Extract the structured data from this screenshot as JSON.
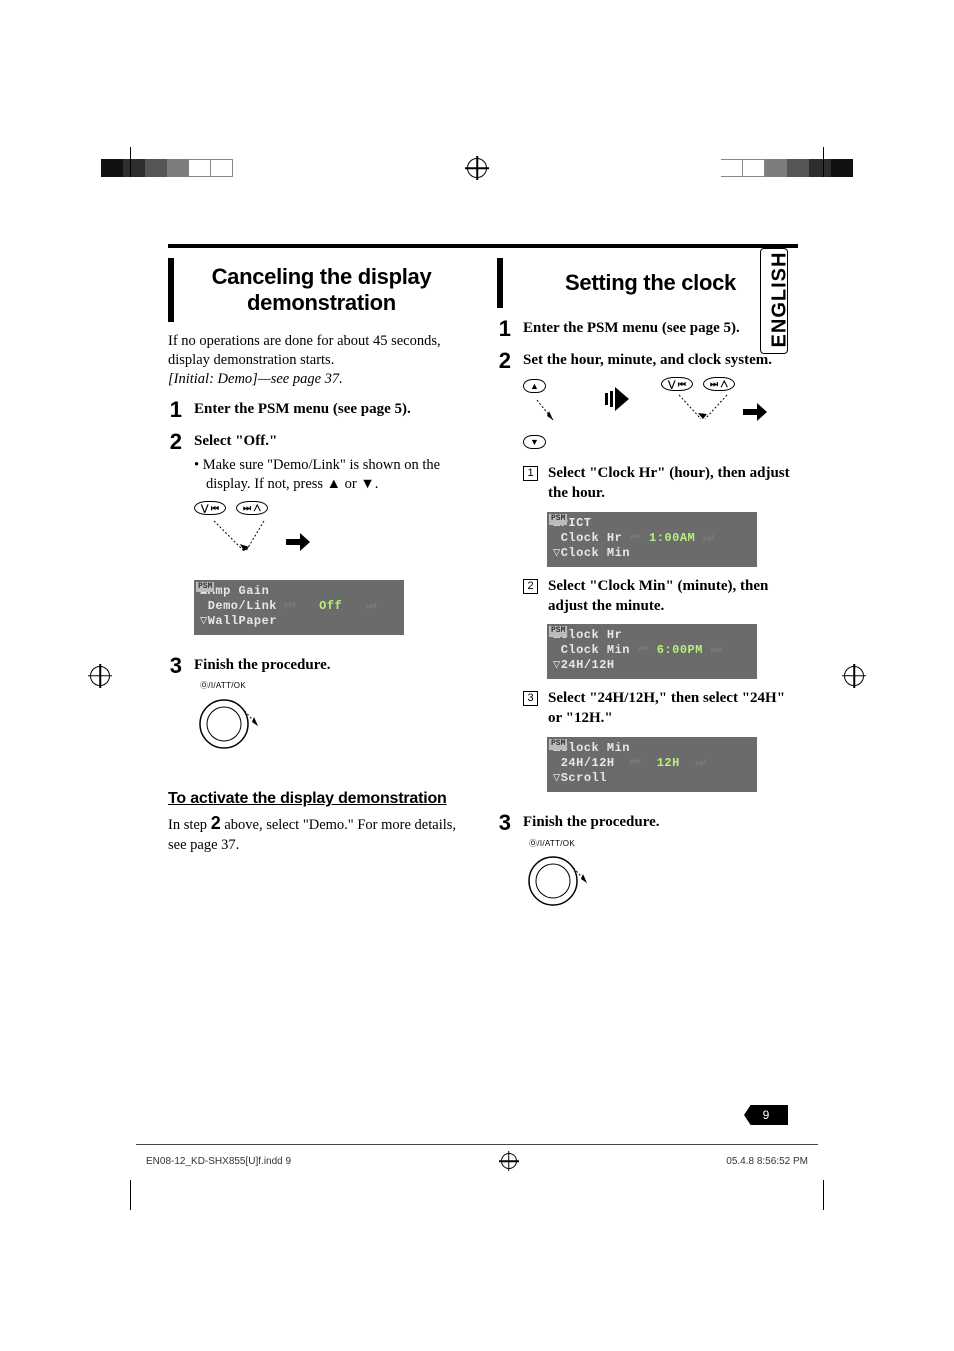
{
  "language_tab": "ENGLISH",
  "page_number": "9",
  "crop_colors_left": [
    "#111111",
    "#2e2e2e",
    "#565656",
    "#7d7d7d",
    "#ffffff",
    "#ffffff"
  ],
  "crop_colors_right": [
    "#ffffff",
    "#ffffff",
    "#7d7d7d",
    "#565656",
    "#2e2e2e",
    "#111111"
  ],
  "left_col": {
    "heading": "Canceling the display demonstration",
    "intro_line1": "If no operations are done for about 45 seconds, display demonstration starts.",
    "intro_italic": "[Initial: Demo]—see page 37.",
    "step1": "Enter the PSM menu (see page 5).",
    "step2_title": "Select \"Off.\"",
    "step2_bullet": "Make sure \"Demo/Link\" is shown on the display. If not, press ▲ or ▼.",
    "btn_prev": "⋁ ⏮",
    "btn_next": "⏭ ⋀",
    "lcd": {
      "tag": "PSM",
      "line_up": "▲Amp Gain",
      "line_mid": " Demo/Link",
      "line_val": "Off",
      "line_dn": "▽WallPaper"
    },
    "step3": "Finish the procedure.",
    "knob_label": "Ⓞ/I/ATT/OK",
    "subheading": "To activate the display demonstration",
    "subtext_a": "In step ",
    "subtext_num": "2",
    "subtext_b": " above, select \"Demo.\" For more details, see page 37."
  },
  "right_col": {
    "heading": "Setting the clock",
    "step1": "Enter the PSM menu (see page 5).",
    "step2_title": "Set the hour, minute, and clock system.",
    "btn_up": "▲",
    "btn_dn": "▼",
    "btn_prev": "⋁ ⏮",
    "btn_next": "⏭ ⋀",
    "sub1": "Select \"Clock Hr\" (hour), then adjust the hour.",
    "lcd1": {
      "tag": "PSM",
      "line_up": "▲PICT",
      "line_mid": " Clock Hr",
      "line_val": "1:00AM",
      "line_dn": "▽Clock Min"
    },
    "sub2": "Select \"Clock Min\" (minute), then adjust the minute.",
    "lcd2": {
      "tag": "PSM",
      "line_up": "▲Clock Hr",
      "line_mid": " Clock Min",
      "line_val": "6:00PM",
      "line_dn": "▽24H/12H"
    },
    "sub3": "Select \"24H/12H,\" then select \"24H\" or \"12H.\"",
    "lcd3": {
      "tag": "PSM",
      "line_up": "▲Clock Min",
      "line_mid": " 24H/12H",
      "line_val": "12H",
      "line_dn": "▽Scroll"
    },
    "step3": "Finish the procedure.",
    "knob_label": "Ⓞ/I/ATT/OK"
  },
  "footer": {
    "left": "EN08-12_KD-SHX855[U]f.indd   9",
    "right": "05.4.8   8:56:52 PM"
  }
}
